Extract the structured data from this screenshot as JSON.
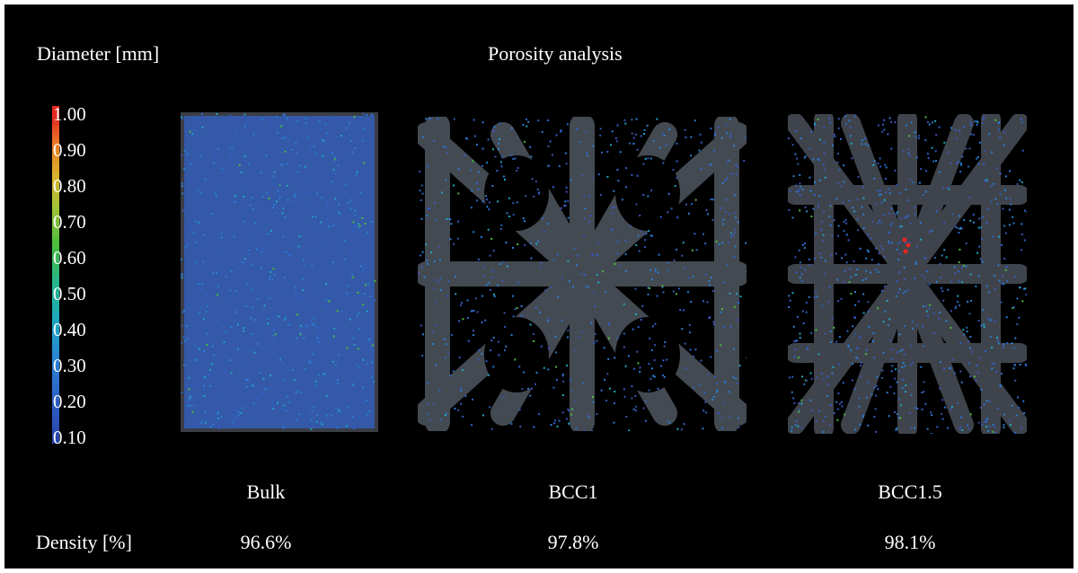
{
  "colorbar": {
    "title": "Diameter [mm]",
    "ticks": [
      "1.00",
      "0.90",
      "0.80",
      "0.70",
      "0.60",
      "0.50",
      "0.40",
      "0.30",
      "0.20",
      "0.10"
    ],
    "colors": [
      "#2742a8",
      "#2a7fd4",
      "#1ea7c4",
      "#4cbc3c",
      "#d8b52c",
      "#ec7a25",
      "#e8261f"
    ]
  },
  "title": "Porosity analysis",
  "samples": [
    {
      "name": "Bulk",
      "density": "96.6%"
    },
    {
      "name": "BCC1",
      "density": "97.8%"
    },
    {
      "name": "BCC1.5",
      "density": "98.1%"
    }
  ],
  "density_label": "Density [%]"
}
